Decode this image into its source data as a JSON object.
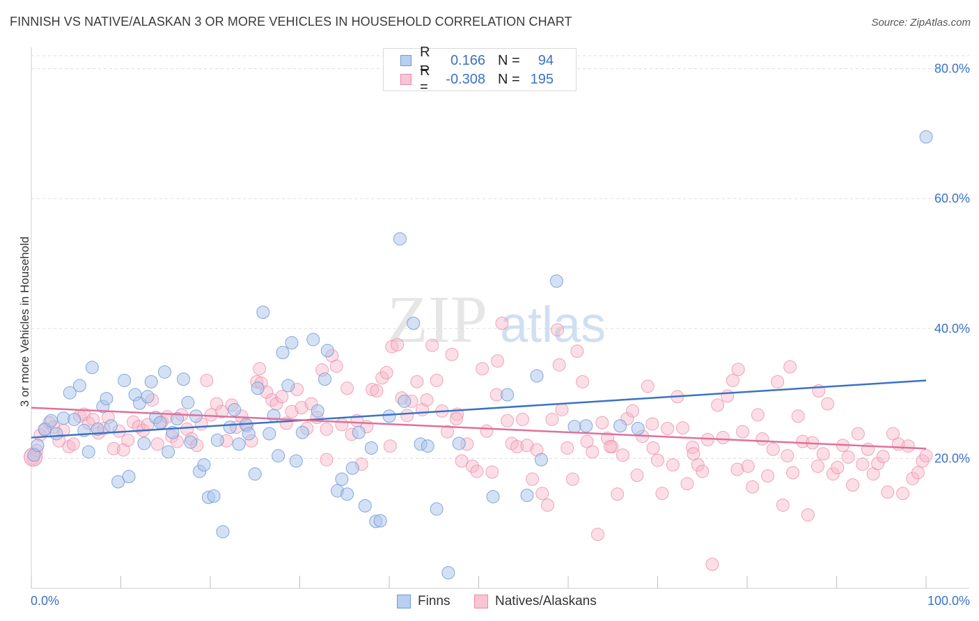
{
  "title": "FINNISH VS NATIVE/ALASKAN 3 OR MORE VEHICLES IN HOUSEHOLD CORRELATION CHART",
  "source": "Source: ZipAtlas.com",
  "watermark": {
    "zip": "ZIP",
    "atlas": "atlas"
  },
  "legend": {
    "r_label": "R =",
    "n_label": "N =",
    "finns": {
      "r": "0.166",
      "n": "94"
    },
    "natives": {
      "r": "-0.308",
      "n": "195"
    }
  },
  "bottom_legend": {
    "finns": "Finns",
    "natives": "Natives/Alaskans"
  },
  "colors": {
    "finns_fill": "#a9c4ec",
    "finns_stroke": "#6e9ad6",
    "finns_line": "#3a72c6",
    "natives_fill": "#f6b5c8",
    "natives_stroke": "#e98aa6",
    "natives_line": "#e0709a",
    "axis_text": "#3a72c6",
    "grid": "#dcdcdc"
  },
  "chart_data": {
    "type": "scatter",
    "title": "FINNISH VS NATIVE/ALASKAN 3 OR MORE VEHICLES IN HOUSEHOLD CORRELATION CHART",
    "xlabel": "",
    "ylabel": "3 or more Vehicles in Household",
    "xlim": [
      0,
      100
    ],
    "ylim": [
      0,
      82
    ],
    "x_tick_labels": [
      "0.0%",
      "100.0%"
    ],
    "y_ticks": [
      20,
      40,
      60,
      80
    ],
    "y_tick_labels": [
      "20.0%",
      "40.0%",
      "60.0%",
      "80.0%"
    ],
    "series": [
      {
        "name": "Finns",
        "r": 0.166,
        "n": 94,
        "trend": {
          "x": [
            0,
            100
          ],
          "y": [
            23.2,
            32.0
          ]
        },
        "points": [
          [
            0.3,
            20.5
          ],
          [
            0.7,
            22.0
          ],
          [
            1.5,
            24.5
          ],
          [
            2.2,
            25.8
          ],
          [
            2.8,
            23.8
          ],
          [
            3.6,
            26.2
          ],
          [
            4.3,
            30.1
          ],
          [
            4.8,
            26.0
          ],
          [
            5.4,
            31.2
          ],
          [
            5.9,
            24.3
          ],
          [
            6.4,
            21.0
          ],
          [
            6.8,
            34.0
          ],
          [
            7.4,
            24.5
          ],
          [
            8.0,
            28.0
          ],
          [
            8.4,
            29.2
          ],
          [
            8.9,
            25.0
          ],
          [
            9.7,
            16.4
          ],
          [
            10.4,
            32.0
          ],
          [
            10.9,
            17.2
          ],
          [
            11.6,
            29.8
          ],
          [
            12.1,
            28.5
          ],
          [
            12.6,
            22.3
          ],
          [
            13.0,
            29.5
          ],
          [
            13.4,
            31.8
          ],
          [
            13.9,
            26.3
          ],
          [
            14.4,
            25.5
          ],
          [
            14.9,
            33.3
          ],
          [
            15.3,
            21.0
          ],
          [
            15.8,
            24.0
          ],
          [
            16.3,
            26.1
          ],
          [
            17.0,
            32.2
          ],
          [
            17.5,
            28.6
          ],
          [
            17.8,
            22.5
          ],
          [
            18.4,
            26.5
          ],
          [
            18.8,
            18.0
          ],
          [
            19.3,
            19.0
          ],
          [
            19.8,
            14.0
          ],
          [
            20.4,
            14.2
          ],
          [
            20.8,
            22.8
          ],
          [
            21.4,
            8.7
          ],
          [
            22.2,
            24.8
          ],
          [
            22.7,
            27.5
          ],
          [
            23.2,
            22.2
          ],
          [
            24.0,
            25.2
          ],
          [
            24.3,
            23.8
          ],
          [
            25.0,
            17.6
          ],
          [
            25.3,
            30.8
          ],
          [
            25.9,
            42.5
          ],
          [
            26.6,
            23.8
          ],
          [
            27.1,
            26.6
          ],
          [
            27.6,
            20.4
          ],
          [
            28.1,
            36.3
          ],
          [
            28.7,
            31.2
          ],
          [
            29.1,
            37.8
          ],
          [
            29.6,
            19.6
          ],
          [
            30.3,
            24.0
          ],
          [
            31.5,
            38.3
          ],
          [
            32.0,
            27.3
          ],
          [
            32.8,
            32.2
          ],
          [
            33.1,
            36.6
          ],
          [
            34.2,
            15.0
          ],
          [
            34.7,
            16.8
          ],
          [
            35.3,
            14.5
          ],
          [
            35.9,
            18.5
          ],
          [
            36.6,
            24.0
          ],
          [
            37.3,
            12.7
          ],
          [
            38.0,
            21.6
          ],
          [
            38.5,
            10.3
          ],
          [
            39.0,
            10.4
          ],
          [
            40.0,
            26.5
          ],
          [
            41.2,
            53.8
          ],
          [
            41.7,
            28.8
          ],
          [
            42.7,
            40.8
          ],
          [
            43.5,
            22.2
          ],
          [
            44.3,
            21.9
          ],
          [
            45.3,
            12.2
          ],
          [
            46.6,
            2.4
          ],
          [
            47.8,
            22.3
          ],
          [
            51.6,
            14.1
          ],
          [
            53.2,
            29.8
          ],
          [
            55.4,
            14.3
          ],
          [
            56.5,
            32.7
          ],
          [
            57.0,
            19.8
          ],
          [
            58.7,
            47.3
          ],
          [
            60.7,
            24.9
          ],
          [
            62.0,
            25.0
          ],
          [
            65.8,
            25.0
          ],
          [
            67.8,
            24.6
          ],
          [
            100.0,
            69.5
          ]
        ]
      },
      {
        "name": "Natives/Alaskans",
        "r": -0.308,
        "n": 195,
        "trend": {
          "x": [
            0,
            100
          ],
          "y": [
            27.8,
            21.5
          ]
        },
        "points": [
          [
            0.2,
            20.0
          ],
          [
            0.6,
            21.2
          ],
          [
            1.0,
            23.6
          ],
          [
            1.5,
            24.4
          ],
          [
            2.0,
            25.5
          ],
          [
            2.5,
            24.8
          ],
          [
            3.1,
            22.7
          ],
          [
            3.6,
            24.3
          ],
          [
            4.2,
            21.8
          ],
          [
            4.7,
            22.2
          ],
          [
            5.4,
            26.5
          ],
          [
            5.9,
            26.8
          ],
          [
            6.4,
            25.4
          ],
          [
            6.9,
            26.0
          ],
          [
            7.5,
            23.9
          ],
          [
            8.1,
            24.6
          ],
          [
            8.6,
            26.3
          ],
          [
            9.2,
            21.5
          ],
          [
            9.8,
            24.2
          ],
          [
            10.3,
            21.3
          ],
          [
            10.8,
            22.8
          ],
          [
            11.4,
            25.6
          ],
          [
            12.0,
            24.9
          ],
          [
            12.5,
            24.3
          ],
          [
            13.0,
            25.2
          ],
          [
            13.5,
            29.0
          ],
          [
            14.1,
            22.2
          ],
          [
            14.6,
            25.6
          ],
          [
            15.2,
            26.4
          ],
          [
            15.7,
            23.4
          ],
          [
            16.3,
            22.6
          ],
          [
            16.8,
            26.7
          ],
          [
            17.4,
            24.5
          ],
          [
            17.9,
            23.0
          ],
          [
            18.5,
            22.0
          ],
          [
            19.0,
            25.3
          ],
          [
            19.6,
            32.0
          ],
          [
            20.1,
            26.7
          ],
          [
            20.7,
            28.4
          ],
          [
            21.3,
            27.2
          ],
          [
            21.8,
            22.7
          ],
          [
            22.4,
            28.2
          ],
          [
            22.9,
            24.8
          ],
          [
            23.5,
            26.5
          ],
          [
            24.1,
            25.0
          ],
          [
            24.6,
            22.7
          ],
          [
            25.2,
            31.8
          ],
          [
            25.7,
            31.6
          ],
          [
            26.3,
            30.2
          ],
          [
            26.9,
            29.0
          ],
          [
            27.4,
            28.4
          ],
          [
            28.0,
            29.5
          ],
          [
            28.5,
            25.4
          ],
          [
            29.1,
            27.2
          ],
          [
            29.7,
            30.6
          ],
          [
            30.2,
            27.8
          ],
          [
            30.8,
            24.6
          ],
          [
            31.3,
            28.4
          ],
          [
            31.9,
            26.3
          ],
          [
            32.5,
            33.6
          ],
          [
            33.0,
            24.5
          ],
          [
            33.6,
            35.8
          ],
          [
            34.1,
            34.2
          ],
          [
            34.7,
            25.2
          ],
          [
            35.3,
            30.8
          ],
          [
            35.8,
            23.7
          ],
          [
            36.4,
            25.8
          ],
          [
            36.9,
            19.1
          ],
          [
            37.5,
            24.9
          ],
          [
            38.1,
            30.6
          ],
          [
            38.6,
            30.4
          ],
          [
            39.2,
            32.4
          ],
          [
            39.7,
            33.2
          ],
          [
            40.3,
            37.2
          ],
          [
            40.9,
            37.5
          ],
          [
            41.4,
            29.3
          ],
          [
            42.0,
            26.6
          ],
          [
            42.5,
            28.8
          ],
          [
            43.1,
            31.8
          ],
          [
            43.7,
            27.5
          ],
          [
            44.2,
            29.0
          ],
          [
            44.8,
            37.4
          ],
          [
            45.3,
            32.0
          ],
          [
            45.9,
            27.3
          ],
          [
            46.5,
            24.1
          ],
          [
            47.0,
            36.0
          ],
          [
            47.6,
            26.8
          ],
          [
            48.1,
            19.6
          ],
          [
            48.7,
            22.2
          ],
          [
            49.3,
            18.8
          ],
          [
            49.8,
            18.0
          ],
          [
            50.4,
            33.8
          ],
          [
            50.9,
            24.2
          ],
          [
            51.5,
            17.9
          ],
          [
            52.1,
            35.0
          ],
          [
            52.6,
            40.8
          ],
          [
            53.2,
            25.8
          ],
          [
            53.7,
            22.3
          ],
          [
            54.3,
            21.8
          ],
          [
            54.9,
            26.0
          ],
          [
            55.4,
            22.0
          ],
          [
            56.0,
            16.8
          ],
          [
            56.5,
            21.3
          ],
          [
            57.1,
            14.6
          ],
          [
            57.7,
            12.8
          ],
          [
            58.2,
            26.0
          ],
          [
            58.8,
            39.8
          ],
          [
            59.3,
            27.5
          ],
          [
            59.9,
            21.6
          ],
          [
            60.5,
            16.8
          ],
          [
            61.0,
            36.5
          ],
          [
            61.6,
            31.8
          ],
          [
            62.1,
            22.6
          ],
          [
            62.7,
            21.0
          ],
          [
            63.3,
            8.3
          ],
          [
            63.8,
            25.5
          ],
          [
            64.4,
            23.1
          ],
          [
            64.9,
            21.8
          ],
          [
            65.5,
            14.5
          ],
          [
            66.1,
            20.5
          ],
          [
            66.6,
            26.1
          ],
          [
            67.2,
            27.3
          ],
          [
            67.7,
            17.4
          ],
          [
            68.3,
            23.4
          ],
          [
            68.9,
            31.1
          ],
          [
            69.4,
            25.3
          ],
          [
            70.0,
            19.7
          ],
          [
            70.5,
            14.6
          ],
          [
            71.1,
            24.6
          ],
          [
            71.7,
            19.0
          ],
          [
            72.2,
            29.5
          ],
          [
            72.8,
            24.7
          ],
          [
            73.3,
            16.1
          ],
          [
            73.9,
            21.7
          ],
          [
            74.5,
            19.0
          ],
          [
            75.0,
            18.0
          ],
          [
            75.6,
            22.9
          ],
          [
            76.1,
            3.7
          ],
          [
            76.7,
            28.2
          ],
          [
            77.3,
            23.2
          ],
          [
            77.8,
            29.6
          ],
          [
            78.4,
            32.0
          ],
          [
            78.9,
            18.3
          ],
          [
            79.5,
            24.1
          ],
          [
            80.1,
            18.8
          ],
          [
            80.6,
            15.6
          ],
          [
            81.2,
            26.7
          ],
          [
            81.7,
            23.0
          ],
          [
            82.3,
            17.3
          ],
          [
            82.9,
            21.4
          ],
          [
            83.4,
            31.8
          ],
          [
            84.0,
            12.8
          ],
          [
            84.5,
            20.4
          ],
          [
            85.1,
            17.8
          ],
          [
            85.7,
            26.5
          ],
          [
            86.2,
            22.6
          ],
          [
            86.8,
            11.3
          ],
          [
            87.3,
            22.4
          ],
          [
            87.9,
            18.8
          ],
          [
            88.5,
            20.7
          ],
          [
            89.0,
            28.4
          ],
          [
            89.6,
            17.6
          ],
          [
            90.1,
            18.6
          ],
          [
            90.7,
            22.0
          ],
          [
            91.3,
            20.2
          ],
          [
            91.8,
            15.9
          ],
          [
            92.4,
            23.8
          ],
          [
            92.9,
            19.1
          ],
          [
            93.5,
            21.4
          ],
          [
            94.1,
            17.6
          ],
          [
            94.6,
            19.2
          ],
          [
            95.2,
            20.3
          ],
          [
            95.7,
            14.8
          ],
          [
            96.3,
            23.8
          ],
          [
            96.9,
            22.2
          ],
          [
            97.4,
            14.6
          ],
          [
            98.0,
            21.9
          ],
          [
            98.5,
            16.9
          ],
          [
            99.1,
            17.8
          ],
          [
            99.6,
            19.6
          ],
          [
            100.0,
            20.4
          ],
          [
            25.5,
            33.8
          ],
          [
            52.0,
            29.8
          ],
          [
            33.0,
            19.8
          ],
          [
            47.5,
            26.1
          ],
          [
            59.0,
            34.4
          ],
          [
            69.5,
            21.6
          ],
          [
            88.0,
            30.4
          ],
          [
            79.0,
            33.7
          ],
          [
            84.8,
            34.1
          ],
          [
            40.1,
            21.9
          ],
          [
            64.7,
            21.8
          ],
          [
            74.0,
            20.7
          ]
        ]
      }
    ]
  }
}
